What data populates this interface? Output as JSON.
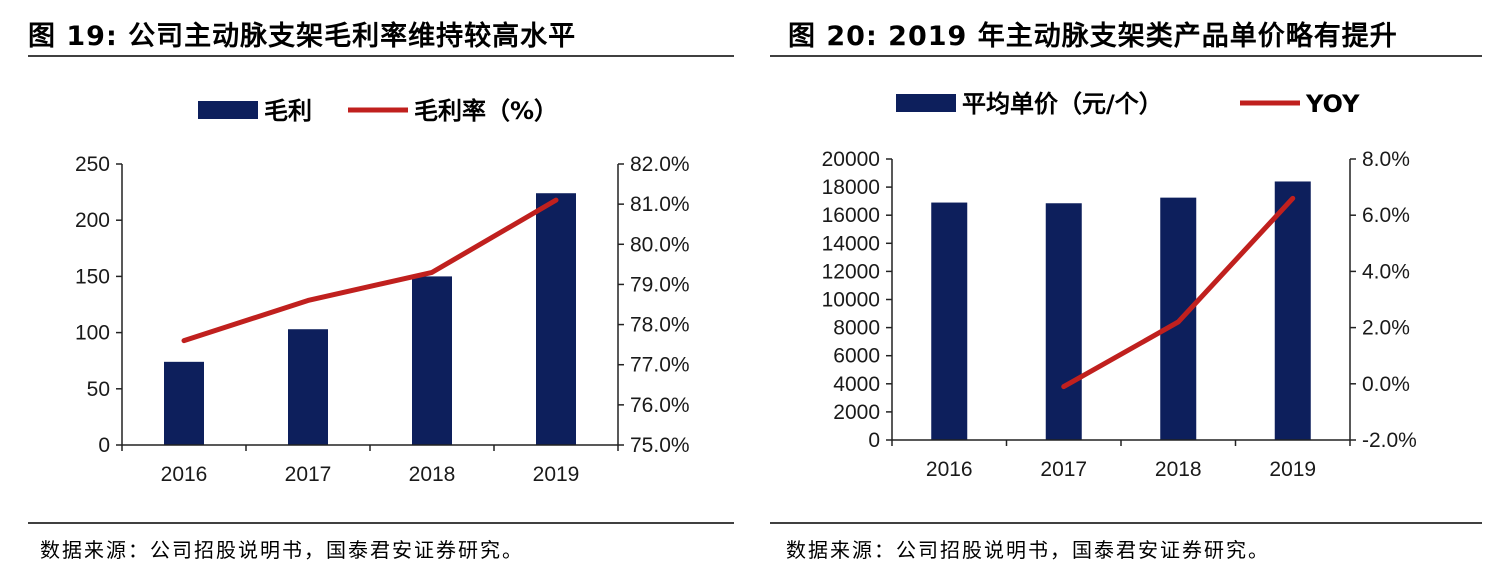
{
  "colors": {
    "bar": "#0d1f5c",
    "line": "#c0201e",
    "axis": "#222222",
    "rule": "#404040"
  },
  "left": {
    "title": "图 19:  公司主动脉支架毛利率维持较高水平",
    "source": "数据来源：公司招股说明书，国泰君安证券研究。",
    "chart_data": {
      "type": "bar",
      "categories": [
        "2016",
        "2017",
        "2018",
        "2019"
      ],
      "series": [
        {
          "name": "毛利",
          "type": "bar",
          "axis": "left",
          "values": [
            74,
            103,
            150,
            224
          ]
        },
        {
          "name": "毛利率（%）",
          "type": "line",
          "axis": "right",
          "values": [
            77.6,
            78.6,
            79.3,
            81.1
          ]
        }
      ],
      "ylim_left": [
        0,
        250
      ],
      "yticks_left": [
        "0",
        "50",
        "100",
        "150",
        "200",
        "250"
      ],
      "ylim_right": [
        75.0,
        82.0
      ],
      "yticks_right": [
        "75.0%",
        "76.0%",
        "77.0%",
        "78.0%",
        "79.0%",
        "80.0%",
        "81.0%",
        "82.0%"
      ],
      "legend_position": "top",
      "grid": false
    }
  },
  "right": {
    "title": "图 20:  2019 年主动脉支架类产品单价略有提升",
    "source": "数据来源：公司招股说明书，国泰君安证券研究。",
    "chart_data": {
      "type": "bar",
      "categories": [
        "2016",
        "2017",
        "2018",
        "2019"
      ],
      "series": [
        {
          "name": "平均单价（元/个）",
          "type": "bar",
          "axis": "left",
          "values": [
            16900,
            16850,
            17250,
            18400
          ]
        },
        {
          "name": "YOY",
          "type": "line",
          "axis": "right",
          "values": [
            null,
            -0.1,
            2.2,
            6.6
          ]
        }
      ],
      "ylim_left": [
        0,
        20000
      ],
      "yticks_left": [
        "0",
        "2000",
        "4000",
        "6000",
        "8000",
        "10000",
        "12000",
        "14000",
        "16000",
        "18000",
        "20000"
      ],
      "ylim_right": [
        -2.0,
        8.0
      ],
      "yticks_right": [
        "-2.0%",
        "0.0%",
        "2.0%",
        "4.0%",
        "6.0%",
        "8.0%"
      ],
      "legend_position": "top",
      "grid": false
    }
  }
}
